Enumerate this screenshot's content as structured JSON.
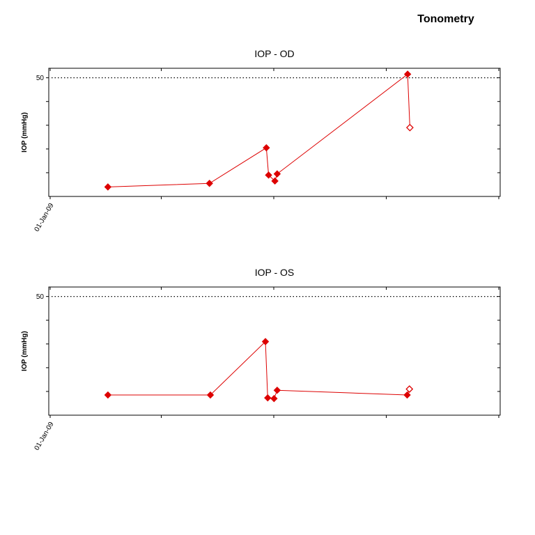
{
  "page": {
    "title": "Tonometry"
  },
  "chart_data": [
    {
      "type": "line",
      "title": "IOP - OD",
      "ylabel": "IOP (mmHg)",
      "xlabel": "",
      "x_tick_labels": [
        "01-Jan-09",
        "",
        "",
        "",
        ""
      ],
      "y_tick_labels": [
        "50"
      ],
      "ylim": [
        0,
        54
      ],
      "y_ticks": [
        10,
        20,
        30,
        40,
        50
      ],
      "reference_line": {
        "y": 50,
        "style": "dotted"
      },
      "color": "#dd0000",
      "series": [
        {
          "points": [
            {
              "t": 0.131,
              "y": 4.0,
              "marker": "filled"
            },
            {
              "t": 0.356,
              "y": 5.5,
              "marker": "filled"
            },
            {
              "t": 0.482,
              "y": 20.5,
              "marker": "filled"
            },
            {
              "t": 0.487,
              "y": 9.0,
              "marker": "filled"
            },
            {
              "t": 0.501,
              "y": 6.5,
              "marker": "filled"
            },
            {
              "t": 0.506,
              "y": 9.5,
              "marker": "filled"
            },
            {
              "t": 0.795,
              "y": 51.5,
              "marker": "filled"
            },
            {
              "t": 0.8,
              "y": 29.0,
              "marker": "hollow"
            }
          ]
        }
      ]
    },
    {
      "type": "line",
      "title": "IOP - OS",
      "ylabel": "IOP (mmHg)",
      "xlabel": "",
      "x_tick_labels": [
        "01-Jan-09",
        "",
        "",
        "",
        ""
      ],
      "y_tick_labels": [
        "50"
      ],
      "ylim": [
        0,
        54
      ],
      "y_ticks": [
        10,
        20,
        30,
        40,
        50
      ],
      "reference_line": {
        "y": 50,
        "style": "dotted"
      },
      "color": "#dd0000",
      "series": [
        {
          "points": [
            {
              "t": 0.131,
              "y": 8.5,
              "marker": "filled"
            },
            {
              "t": 0.358,
              "y": 8.5,
              "marker": "filled"
            },
            {
              "t": 0.48,
              "y": 31.0,
              "marker": "filled"
            },
            {
              "t": 0.485,
              "y": 7.3,
              "marker": "filled"
            },
            {
              "t": 0.499,
              "y": 7.0,
              "marker": "filled"
            },
            {
              "t": 0.506,
              "y": 10.5,
              "marker": "filled"
            },
            {
              "t": 0.794,
              "y": 8.5,
              "marker": "filled"
            },
            {
              "t": 0.799,
              "y": 11.0,
              "marker": "hollow"
            }
          ]
        }
      ]
    }
  ]
}
